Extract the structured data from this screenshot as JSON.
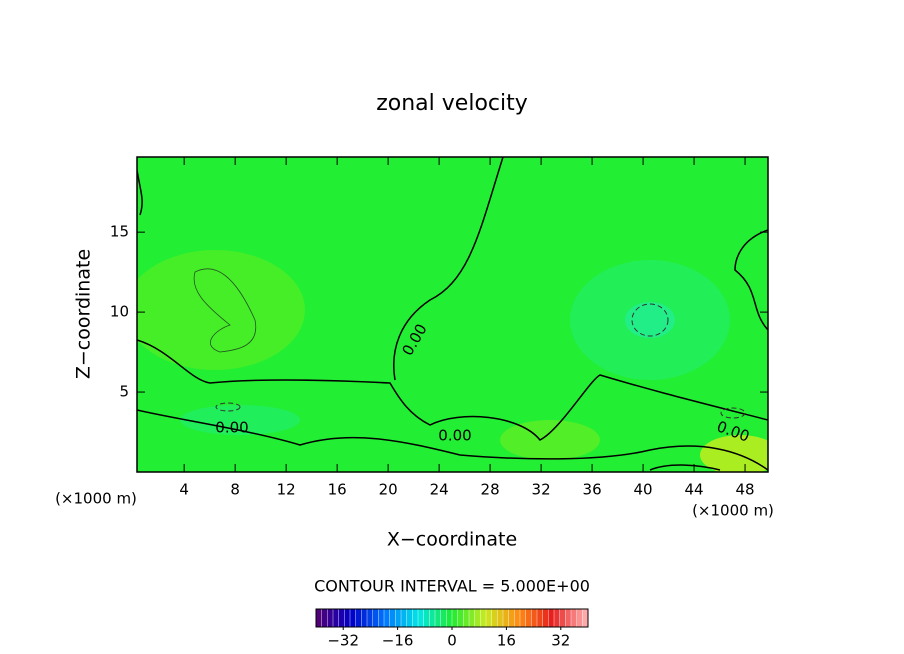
{
  "chart_data": {
    "type": "contour",
    "title": "zonal velocity",
    "xlabel": "X−coordinate",
    "ylabel": "Z−coordinate",
    "x_unit": "(×1000 m)",
    "annotation": "CONTOUR INTERVAL = 5.000E+00",
    "xlim": [
      0.3,
      49.8
    ],
    "ylim": [
      0,
      19.7
    ],
    "xticks": [
      4,
      8,
      12,
      16,
      20,
      24,
      28,
      32,
      36,
      40,
      44,
      48
    ],
    "yticks": [
      5,
      10,
      15
    ],
    "contour_labels": [
      {
        "value": 0,
        "label": "0.00"
      },
      {
        "value": 0,
        "label": "0.00"
      },
      {
        "value": 0,
        "label": "0.00"
      },
      {
        "value": 0,
        "label": "0.00"
      }
    ],
    "colorbar": {
      "lim": [
        -40,
        40
      ],
      "ticks": [
        {
          "value": -32,
          "label": "−32"
        },
        {
          "value": -16,
          "label": "−16"
        },
        0,
        16,
        {
          "value": 32,
          "label": "32"
        }
      ]
    }
  }
}
